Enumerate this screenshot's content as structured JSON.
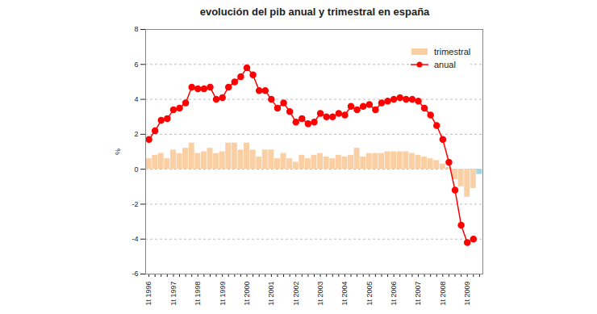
{
  "chart_data": {
    "type": "bar",
    "title": "evolución del pib anual y trimestral en españa",
    "y_label": "%",
    "categories": [
      "1t 1996",
      null,
      null,
      null,
      "1t 1997",
      null,
      null,
      null,
      "1t 1998",
      null,
      null,
      null,
      "1t 1999",
      null,
      null,
      null,
      "1t 2000",
      null,
      null,
      null,
      "1t 2001",
      null,
      null,
      null,
      "1t 2002",
      null,
      null,
      null,
      "1t 2003",
      null,
      null,
      null,
      "1t 2004",
      null,
      null,
      null,
      "1t 2005",
      null,
      null,
      null,
      "1t 2006",
      null,
      null,
      null,
      "1t 2007",
      null,
      null,
      null,
      "1t 2008",
      null,
      null,
      null,
      "1t 2009",
      null,
      null
    ],
    "series": [
      {
        "name": "trimestral",
        "type": "bar",
        "values": [
          0.6,
          0.8,
          0.9,
          0.6,
          1.1,
          0.9,
          1.2,
          1.5,
          0.9,
          1.0,
          1.2,
          0.9,
          1.0,
          1.5,
          1.5,
          1.1,
          1.5,
          1.1,
          0.7,
          1.1,
          1.1,
          0.6,
          0.9,
          0.6,
          0.4,
          0.8,
          0.6,
          0.8,
          0.9,
          0.7,
          0.6,
          0.8,
          0.7,
          0.8,
          1.2,
          0.7,
          0.9,
          0.9,
          0.9,
          1.0,
          1.0,
          1.0,
          1.0,
          0.9,
          0.8,
          0.7,
          0.6,
          0.5,
          0.3,
          0.1,
          -0.6,
          -1.0,
          -1.6,
          -1.1,
          -0.3
        ],
        "colors": [
          "#f9cfa3",
          "#f9cfa3",
          "#f9cfa3",
          "#f9cfa3",
          "#f9cfa3",
          "#f9cfa3",
          "#f9cfa3",
          "#f9cfa3",
          "#f9cfa3",
          "#f9cfa3",
          "#f9cfa3",
          "#f9cfa3",
          "#f9cfa3",
          "#f9cfa3",
          "#f9cfa3",
          "#f9cfa3",
          "#f9cfa3",
          "#f9cfa3",
          "#f9cfa3",
          "#f9cfa3",
          "#f9cfa3",
          "#f9cfa3",
          "#f9cfa3",
          "#f9cfa3",
          "#f9cfa3",
          "#f9cfa3",
          "#f9cfa3",
          "#f9cfa3",
          "#f9cfa3",
          "#f9cfa3",
          "#f9cfa3",
          "#f9cfa3",
          "#f9cfa3",
          "#f9cfa3",
          "#f9cfa3",
          "#f9cfa3",
          "#f9cfa3",
          "#f9cfa3",
          "#f9cfa3",
          "#f9cfa3",
          "#f9cfa3",
          "#f9cfa3",
          "#f9cfa3",
          "#f9cfa3",
          "#f9cfa3",
          "#f9cfa3",
          "#f9cfa3",
          "#f9cfa3",
          "#f9cfa3",
          "#f9cfa3",
          "#f9cfa3",
          "#f9cfa3",
          "#f9cfa3",
          "#f9cfa3",
          "#9fd6e6"
        ]
      },
      {
        "name": "anual",
        "type": "line",
        "color": "#ff0000",
        "marker": "circle",
        "values": [
          1.7,
          2.2,
          2.8,
          2.9,
          3.4,
          3.5,
          3.8,
          4.7,
          4.6,
          4.6,
          4.7,
          4.0,
          4.1,
          4.7,
          5.0,
          5.3,
          5.8,
          5.4,
          4.5,
          4.5,
          4.0,
          3.5,
          3.8,
          3.3,
          2.7,
          2.9,
          2.6,
          2.7,
          3.2,
          3.0,
          3.0,
          3.2,
          3.1,
          3.6,
          3.4,
          3.6,
          3.7,
          3.4,
          3.8,
          3.9,
          4.0,
          4.1,
          4.0,
          4.0,
          3.9,
          3.5,
          3.1,
          2.5,
          1.7,
          0.4,
          -1.2,
          -3.2,
          -4.2,
          -4.0,
          null
        ]
      }
    ],
    "ylim": [
      -6,
      8
    ],
    "yticks": [
      -6,
      -4,
      -2,
      0,
      2,
      4,
      6,
      8
    ],
    "grid": true,
    "legend": "top-right"
  }
}
